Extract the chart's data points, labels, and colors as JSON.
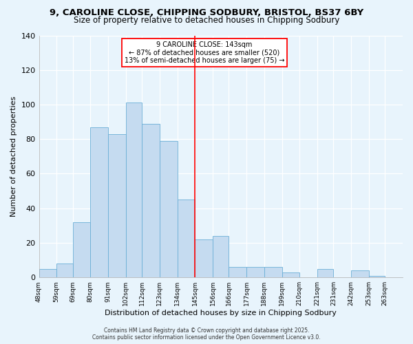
{
  "title_line1": "9, CAROLINE CLOSE, CHIPPING SODBURY, BRISTOL, BS37 6BY",
  "title_line2": "Size of property relative to detached houses in Chipping Sodbury",
  "xlabel": "Distribution of detached houses by size in Chipping Sodbury",
  "ylabel": "Number of detached properties",
  "bin_labels": [
    "48sqm",
    "59sqm",
    "69sqm",
    "80sqm",
    "91sqm",
    "102sqm",
    "112sqm",
    "123sqm",
    "134sqm",
    "145sqm",
    "156sqm",
    "166sqm",
    "177sqm",
    "188sqm",
    "199sqm",
    "210sqm",
    "221sqm",
    "231sqm",
    "242sqm",
    "253sqm",
    "263sqm"
  ],
  "bin_edges": [
    48,
    59,
    69,
    80,
    91,
    102,
    112,
    123,
    134,
    145,
    156,
    166,
    177,
    188,
    199,
    210,
    221,
    231,
    242,
    253,
    263,
    274
  ],
  "bar_heights": [
    5,
    8,
    32,
    87,
    83,
    101,
    89,
    79,
    45,
    22,
    24,
    6,
    6,
    6,
    3,
    0,
    5,
    0,
    4,
    1,
    0
  ],
  "bar_color": "#c5dbf0",
  "bar_edge_color": "#6aaed6",
  "vline_x": 145,
  "vline_color": "red",
  "annotation_title": "9 CAROLINE CLOSE: 143sqm",
  "annotation_line2": "← 87% of detached houses are smaller (520)",
  "annotation_line3": "13% of semi-detached houses are larger (75) →",
  "annotation_box_color": "white",
  "annotation_box_edge": "red",
  "ylim": [
    0,
    140
  ],
  "yticks": [
    0,
    20,
    40,
    60,
    80,
    100,
    120,
    140
  ],
  "footer_line1": "Contains HM Land Registry data © Crown copyright and database right 2025.",
  "footer_line2": "Contains public sector information licensed under the Open Government Licence v3.0.",
  "background_color": "#e8f4fc",
  "grid_color": "#ffffff",
  "annotation_fontsize": 7.0,
  "title1_fontsize": 9.5,
  "title2_fontsize": 8.5,
  "xlabel_fontsize": 8,
  "ylabel_fontsize": 8,
  "xtick_fontsize": 6.5,
  "ytick_fontsize": 8,
  "footer_fontsize": 5.5
}
